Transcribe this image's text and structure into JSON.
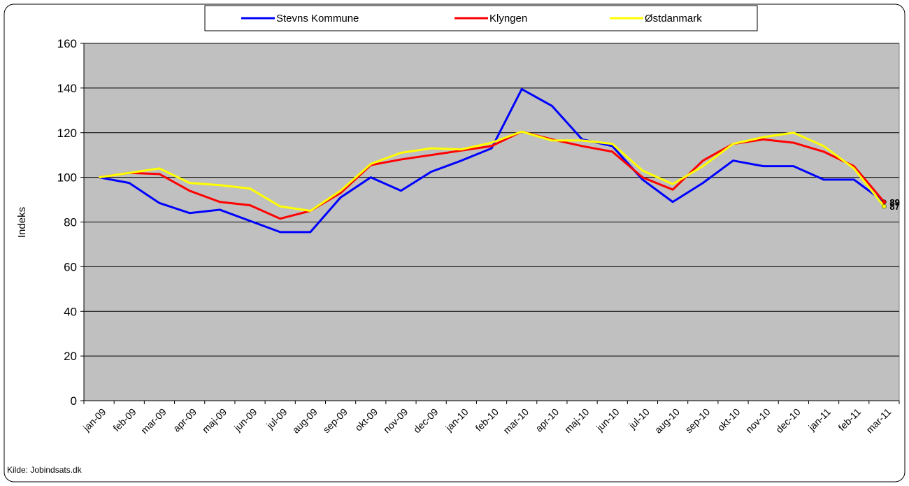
{
  "chart_data": {
    "type": "line",
    "categories": [
      "jan-09",
      "feb-09",
      "mar-09",
      "apr-09",
      "maj-09",
      "jun-09",
      "jul-09",
      "aug-09",
      "sep-09",
      "okt-09",
      "nov-09",
      "dec-09",
      "jan-10",
      "feb-10",
      "mar-10",
      "apr-10",
      "maj-10",
      "jun-10",
      "jul-10",
      "aug-10",
      "sep-10",
      "okt-10",
      "nov-10",
      "dec-10",
      "jan-11",
      "feb-11",
      "mar-11"
    ],
    "series": [
      {
        "name": "Stevns Kommune",
        "color": "#0000ff",
        "values": [
          100,
          97.5,
          88.5,
          84,
          85.5,
          80.5,
          75.5,
          75.5,
          91,
          100,
          94,
          102.5,
          107.5,
          113,
          139.5,
          132,
          117,
          114,
          99,
          89,
          97.5,
          107.5,
          105,
          105,
          99,
          99,
          89
        ]
      },
      {
        "name": "Klyngen",
        "color": "#ff0000",
        "values": [
          100,
          102,
          101.5,
          94,
          89,
          87.5,
          81.5,
          85,
          93,
          105.5,
          108,
          110,
          112,
          114,
          120.5,
          117,
          114,
          111.5,
          100,
          94.5,
          107.5,
          115,
          117,
          115.5,
          111.5,
          105,
          89
        ]
      },
      {
        "name": "Østdanmark",
        "color": "#ffff00",
        "values": [
          100,
          102,
          104,
          97.5,
          96.5,
          95,
          87,
          85,
          94,
          106,
          111,
          113,
          112.5,
          115.5,
          120.5,
          116.5,
          116.5,
          115,
          103,
          97,
          105,
          115,
          118,
          120,
          114,
          104,
          87
        ]
      }
    ],
    "ylabel": "Indeks",
    "source": "Kilde: Jobindsats.dk",
    "ylim": [
      0,
      160
    ],
    "yticks": [
      0,
      20,
      40,
      60,
      80,
      100,
      120,
      140,
      160
    ],
    "grid": true,
    "legend": "top",
    "background": "#c0c0c0",
    "end_labels": true
  }
}
